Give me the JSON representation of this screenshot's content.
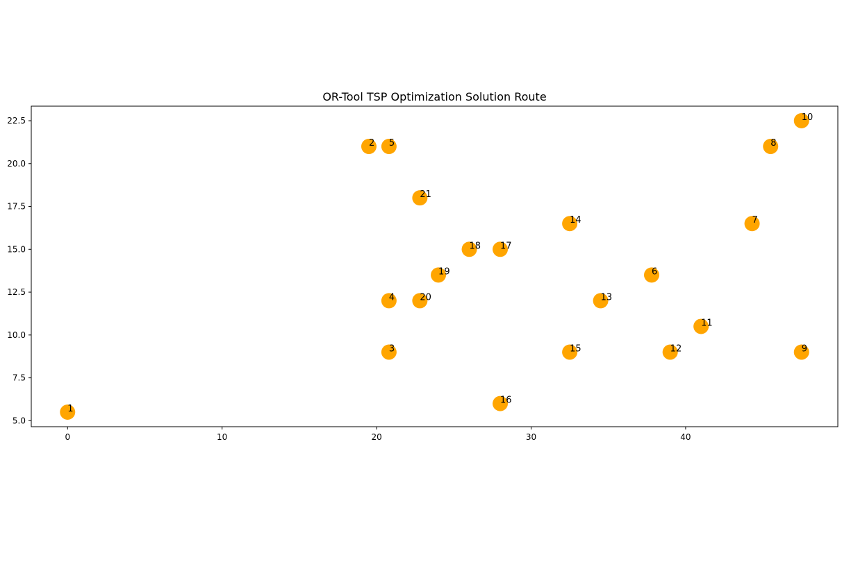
{
  "chart_data": {
    "type": "scatter",
    "title": "OR-Tool TSP Optimization Solution Route",
    "xlabel": "",
    "ylabel": "",
    "xlim": [
      -2.35,
      49.85
    ],
    "ylim": [
      4.65,
      23.35
    ],
    "x_ticks": [
      0,
      10,
      20,
      30,
      40
    ],
    "x_tick_labels": [
      "0",
      "10",
      "20",
      "30",
      "40"
    ],
    "y_ticks": [
      5.0,
      7.5,
      10.0,
      12.5,
      15.0,
      17.5,
      20.0,
      22.5
    ],
    "y_tick_labels": [
      "5.0",
      "7.5",
      "10.0",
      "12.5",
      "15.0",
      "17.5",
      "20.0",
      "22.5"
    ],
    "grid": false,
    "marker_color": "#ffa500",
    "points": [
      {
        "label": "1",
        "x": 0,
        "y": 5.5
      },
      {
        "label": "2",
        "x": 19.5,
        "y": 21.0
      },
      {
        "label": "3",
        "x": 20.8,
        "y": 9.0
      },
      {
        "label": "4",
        "x": 20.8,
        "y": 12.0
      },
      {
        "label": "5",
        "x": 20.8,
        "y": 21.0
      },
      {
        "label": "6",
        "x": 37.8,
        "y": 13.5
      },
      {
        "label": "7",
        "x": 44.3,
        "y": 16.5
      },
      {
        "label": "8",
        "x": 45.5,
        "y": 21.0
      },
      {
        "label": "9",
        "x": 47.5,
        "y": 9.0
      },
      {
        "label": "10",
        "x": 47.5,
        "y": 22.5
      },
      {
        "label": "11",
        "x": 41.0,
        "y": 10.5
      },
      {
        "label": "12",
        "x": 39.0,
        "y": 9.0
      },
      {
        "label": "13",
        "x": 34.5,
        "y": 12.0
      },
      {
        "label": "14",
        "x": 32.5,
        "y": 16.5
      },
      {
        "label": "15",
        "x": 32.5,
        "y": 9.0
      },
      {
        "label": "16",
        "x": 28.0,
        "y": 6.0
      },
      {
        "label": "17",
        "x": 28.0,
        "y": 15.0
      },
      {
        "label": "18",
        "x": 26.0,
        "y": 15.0
      },
      {
        "label": "19",
        "x": 24.0,
        "y": 13.5
      },
      {
        "label": "20",
        "x": 22.8,
        "y": 12.0
      },
      {
        "label": "21",
        "x": 22.8,
        "y": 18.0
      }
    ]
  }
}
